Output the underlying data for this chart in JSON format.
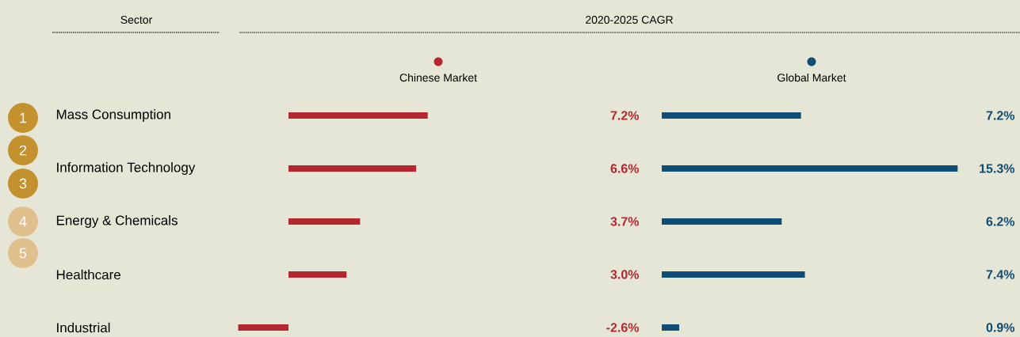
{
  "chart_data": [
    {
      "type": "bar",
      "orientation": "horizontal",
      "title": "Chinese Market",
      "ylabel": "Sector",
      "annotations": [
        "2020-2025 CAGR",
        "1",
        "2",
        "3",
        "4",
        "5"
      ],
      "categories": [
        "Mass Consumption",
        "Information Technology",
        "Energy & Chemicals",
        "Healthcare",
        "Industrial"
      ],
      "values": [
        7.2,
        6.6,
        3.7,
        3.0,
        -2.6
      ],
      "value_labels": [
        "7.2%",
        "6.6%",
        "3.7%",
        "3.0%",
        "-2.6%"
      ],
      "color": "#b5262e",
      "tick_labels": "y"
    },
    {
      "type": "bar",
      "orientation": "horizontal",
      "title": "Global Market",
      "categories": [
        null,
        null,
        null,
        null,
        null
      ],
      "values": [
        7.2,
        15.3,
        6.2,
        7.4,
        0.9
      ],
      "value_labels": [
        "7.2%",
        "15.3%",
        "6.2%",
        "7.4%",
        "0.9%"
      ],
      "color": "#0e4d76",
      "tick_labels": false
    }
  ]
}
